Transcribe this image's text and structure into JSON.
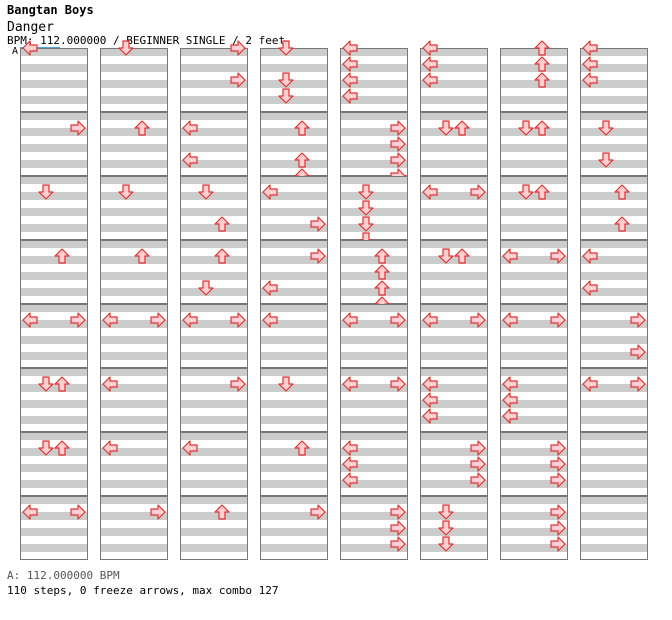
{
  "header": {
    "artist": "Bangtan Boys",
    "song": "Danger",
    "info": "BPM: 112.000000 / BEGINNER SINGLE / 2 feet"
  },
  "bpm_marker": "A",
  "footer": {
    "bpm_line": "A: 112.000000 BPM",
    "stats": "110 steps, 0 freeze arrows, max combo 127"
  },
  "chart": {
    "columns": 8,
    "measures_per_column": 8,
    "lanes": [
      "left",
      "down",
      "up",
      "right"
    ],
    "measures": [
      [
        [
          0,
          0
        ]
      ],
      [
        [
          0,
          1
        ]
      ],
      [
        [
          0,
          3
        ],
        [
          2,
          3
        ]
      ],
      [
        [
          0,
          1
        ],
        [
          2,
          1
        ],
        [
          3,
          1
        ]
      ],
      [
        [
          0,
          0
        ],
        [
          1,
          0
        ],
        [
          2,
          0
        ],
        [
          3,
          0
        ]
      ],
      [
        [
          0,
          0
        ],
        [
          1,
          0
        ],
        [
          2,
          0
        ]
      ],
      [
        [
          0,
          2
        ],
        [
          1,
          2
        ],
        [
          2,
          2
        ]
      ],
      [
        [
          0,
          0
        ],
        [
          1,
          0
        ],
        [
          2,
          0
        ]
      ],
      [
        [
          1,
          3
        ]
      ],
      [
        [
          1,
          2
        ]
      ],
      [
        [
          1,
          0
        ],
        [
          3,
          0
        ]
      ],
      [
        [
          1,
          2
        ],
        [
          3,
          2
        ],
        [
          4,
          2
        ]
      ],
      [
        [
          1,
          3
        ],
        [
          2,
          3
        ],
        [
          3,
          3
        ],
        [
          4,
          3
        ]
      ],
      [
        [
          1,
          1
        ],
        [
          1,
          2
        ]
      ],
      [
        [
          1,
          1
        ],
        [
          1,
          2
        ]
      ],
      [
        [
          1,
          1
        ],
        [
          3,
          1
        ]
      ],
      [
        [
          1,
          1
        ]
      ],
      [
        [
          1,
          1
        ]
      ],
      [
        [
          1,
          1
        ],
        [
          3,
          2
        ]
      ],
      [
        [
          1,
          0
        ],
        [
          3,
          3
        ]
      ],
      [
        [
          1,
          1
        ],
        [
          2,
          1
        ],
        [
          3,
          1
        ],
        [
          4,
          1
        ]
      ],
      [
        [
          1,
          0
        ],
        [
          1,
          3
        ]
      ],
      [
        [
          1,
          1
        ],
        [
          1,
          2
        ]
      ],
      [
        [
          1,
          2
        ],
        [
          3,
          2
        ]
      ],
      [
        [
          1,
          2
        ]
      ],
      [
        [
          1,
          2
        ]
      ],
      [
        [
          1,
          2
        ],
        [
          3,
          1
        ]
      ],
      [
        [
          1,
          3
        ],
        [
          3,
          0
        ]
      ],
      [
        [
          1,
          2
        ],
        [
          2,
          2
        ],
        [
          3,
          2
        ],
        [
          4,
          2
        ]
      ],
      [
        [
          1,
          1
        ],
        [
          1,
          2
        ]
      ],
      [
        [
          1,
          0
        ],
        [
          1,
          3
        ]
      ],
      [
        [
          1,
          0
        ],
        [
          3,
          0
        ]
      ],
      [
        [
          1,
          0
        ],
        [
          1,
          3
        ]
      ],
      [
        [
          1,
          0
        ],
        [
          1,
          3
        ]
      ],
      [
        [
          1,
          0
        ],
        [
          1,
          3
        ]
      ],
      [
        [
          1,
          0
        ]
      ],
      [
        [
          1,
          0
        ],
        [
          1,
          3
        ]
      ],
      [
        [
          1,
          0
        ],
        [
          1,
          3
        ]
      ],
      [
        [
          1,
          0
        ],
        [
          1,
          3
        ]
      ],
      [
        [
          1,
          3
        ],
        [
          3,
          3
        ]
      ],
      [
        [
          1,
          1
        ],
        [
          1,
          2
        ]
      ],
      [
        [
          1,
          0
        ]
      ],
      [
        [
          1,
          3
        ]
      ],
      [
        [
          1,
          1
        ]
      ],
      [
        [
          1,
          0
        ],
        [
          1,
          3
        ]
      ],
      [
        [
          1,
          0
        ],
        [
          2,
          0
        ],
        [
          3,
          0
        ]
      ],
      [
        [
          1,
          0
        ],
        [
          2,
          0
        ],
        [
          3,
          0
        ]
      ],
      [
        [
          1,
          0
        ],
        [
          1,
          3
        ]
      ],
      [
        [
          1,
          1
        ],
        [
          1,
          2
        ]
      ],
      [
        [
          1,
          0
        ]
      ],
      [
        [
          1,
          0
        ]
      ],
      [
        [
          1,
          2
        ]
      ],
      [
        [
          1,
          0
        ],
        [
          2,
          0
        ],
        [
          3,
          0
        ]
      ],
      [
        [
          1,
          3
        ],
        [
          2,
          3
        ],
        [
          3,
          3
        ]
      ],
      [
        [
          1,
          3
        ],
        [
          2,
          3
        ],
        [
          3,
          3
        ]
      ],
      [],
      [
        [
          1,
          0
        ],
        [
          1,
          3
        ]
      ],
      [
        [
          1,
          3
        ]
      ],
      [
        [
          1,
          2
        ]
      ],
      [
        [
          1,
          3
        ]
      ],
      [
        [
          1,
          3
        ],
        [
          2,
          3
        ],
        [
          3,
          3
        ]
      ],
      [
        [
          1,
          1
        ],
        [
          2,
          1
        ],
        [
          3,
          1
        ]
      ],
      [
        [
          1,
          3
        ],
        [
          2,
          3
        ],
        [
          3,
          3
        ]
      ],
      []
    ]
  },
  "colors": {
    "band": "#cccccc",
    "border": "#777777",
    "arrow_fill": "#ffd0d0",
    "arrow_stroke": "#e03030"
  }
}
